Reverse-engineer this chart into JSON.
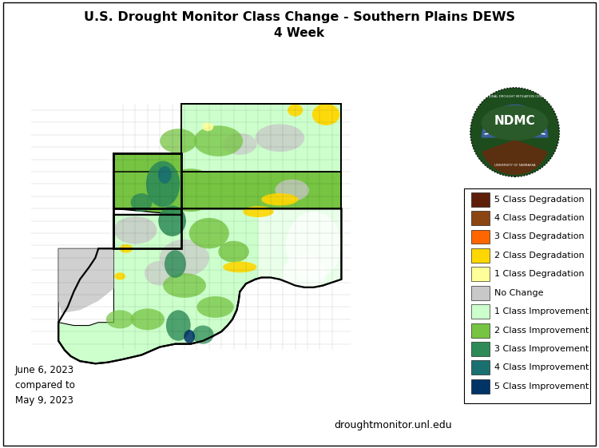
{
  "title_line1": "U.S. Drought Monitor Class Change - Southern Plains DEWS",
  "title_line2": "4 Week",
  "date_text": "June 6, 2023\ncompared to\nMay 9, 2023",
  "website_text": "droughtmonitor.unl.edu",
  "background_color": "#ffffff",
  "legend_items": [
    {
      "label": "5 Class Degradation",
      "color": "#5d1f0a"
    },
    {
      "label": "4 Class Degradation",
      "color": "#8b4513"
    },
    {
      "label": "3 Class Degradation",
      "color": "#ff6600"
    },
    {
      "label": "2 Class Degradation",
      "color": "#ffd700"
    },
    {
      "label": "1 Class Degradation",
      "color": "#ffff99"
    },
    {
      "label": "No Change",
      "color": "#c8c8c8"
    },
    {
      "label": "1 Class Improvement",
      "color": "#ccffcc"
    },
    {
      "label": "2 Class Improvement",
      "color": "#76c442"
    },
    {
      "label": "3 Class Improvement",
      "color": "#2e8b57"
    },
    {
      "label": "4 Class Improvement",
      "color": "#1a7070"
    },
    {
      "label": "5 Class Improvement",
      "color": "#003366"
    }
  ],
  "title_fontsize": 11.5,
  "subtitle_fontsize": 11,
  "legend_fontsize": 8,
  "date_fontsize": 8.5,
  "website_fontsize": 9,
  "map_xlim": [
    0,
    750
  ],
  "map_ylim": [
    0,
    510
  ],
  "outer_border": true
}
